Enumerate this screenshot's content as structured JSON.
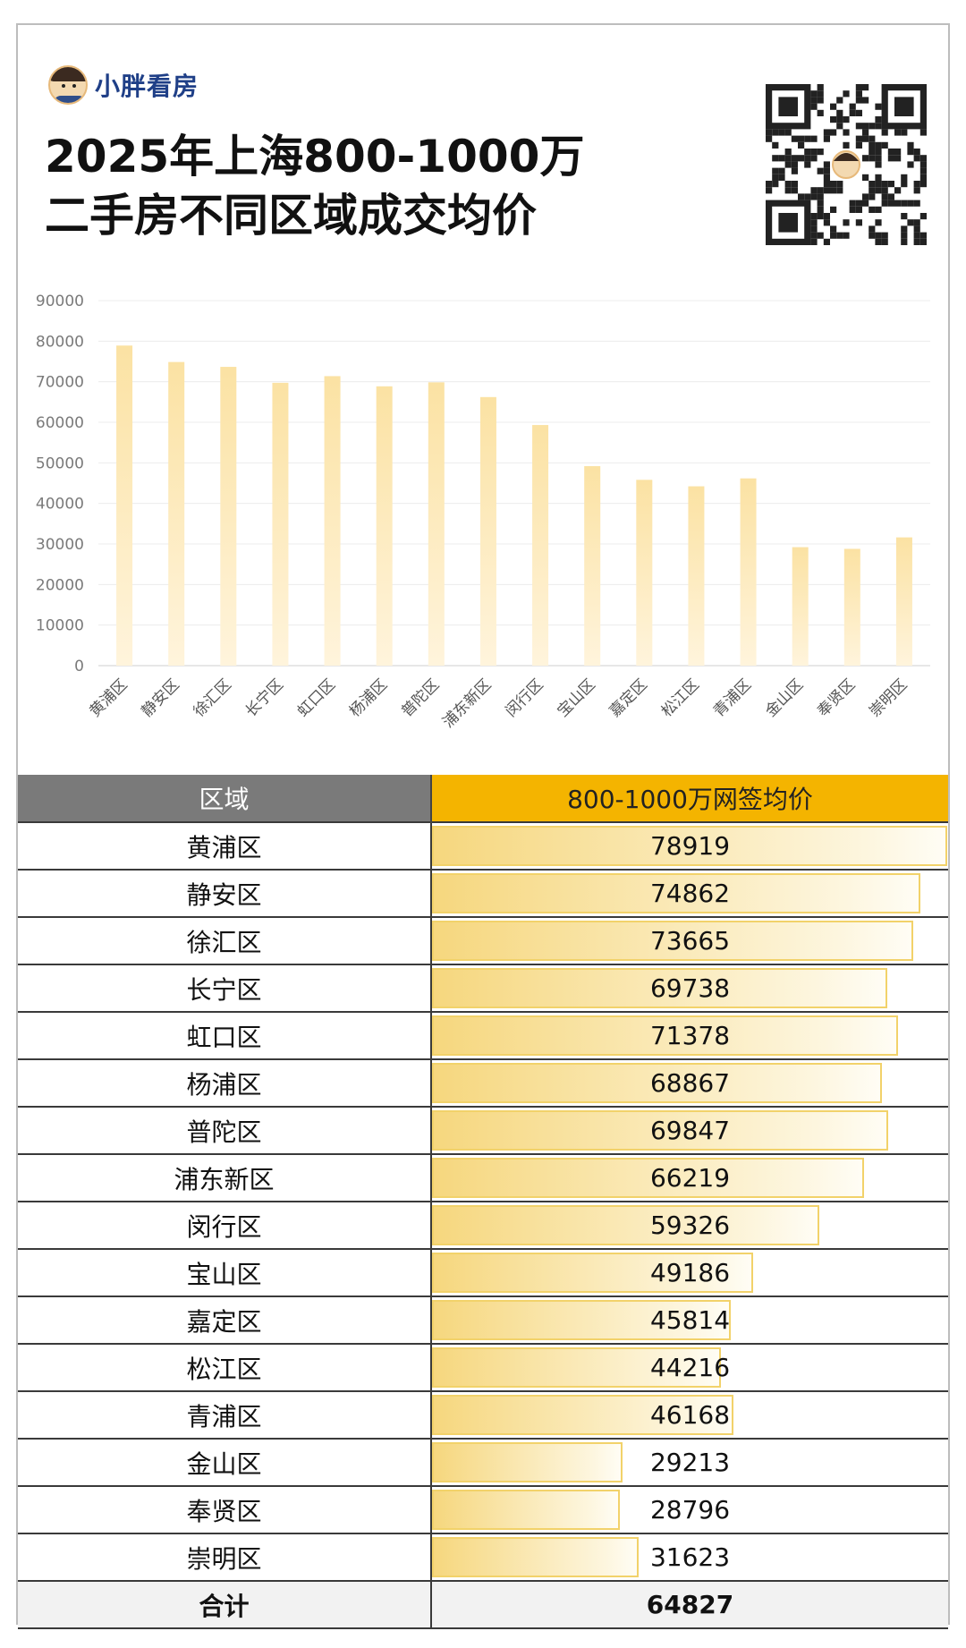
{
  "brand": {
    "name": "小胖看房"
  },
  "title": {
    "line1": "2025年上海800-1000万",
    "line2": "二手房不同区域成交均价"
  },
  "colors": {
    "bar": "#fbe6b1",
    "header_price": "#f4b400",
    "header_region": "#7a7a7a",
    "brand": "#1f3f87"
  },
  "icons": {
    "avatar": "cartoon-avatar-icon",
    "qr": "qr-code-icon"
  },
  "table": {
    "headers": [
      "区域",
      "800-1000万网签均价"
    ],
    "total_label": "合计",
    "total_value": "64827"
  },
  "chart_data": {
    "type": "bar",
    "categories": [
      "黄浦区",
      "静安区",
      "徐汇区",
      "长宁区",
      "虹口区",
      "杨浦区",
      "普陀区",
      "浦东新区",
      "闵行区",
      "宝山区",
      "嘉定区",
      "松江区",
      "青浦区",
      "金山区",
      "奉贤区",
      "崇明区"
    ],
    "values": [
      78919,
      74862,
      73665,
      69738,
      71378,
      68867,
      69847,
      66219,
      59326,
      49186,
      45814,
      44216,
      46168,
      29213,
      28796,
      31623
    ],
    "yticks": [
      0,
      10000,
      20000,
      30000,
      40000,
      50000,
      60000,
      70000,
      80000,
      90000
    ],
    "ylim": [
      0,
      90000
    ],
    "grid": true,
    "legend": "none"
  }
}
